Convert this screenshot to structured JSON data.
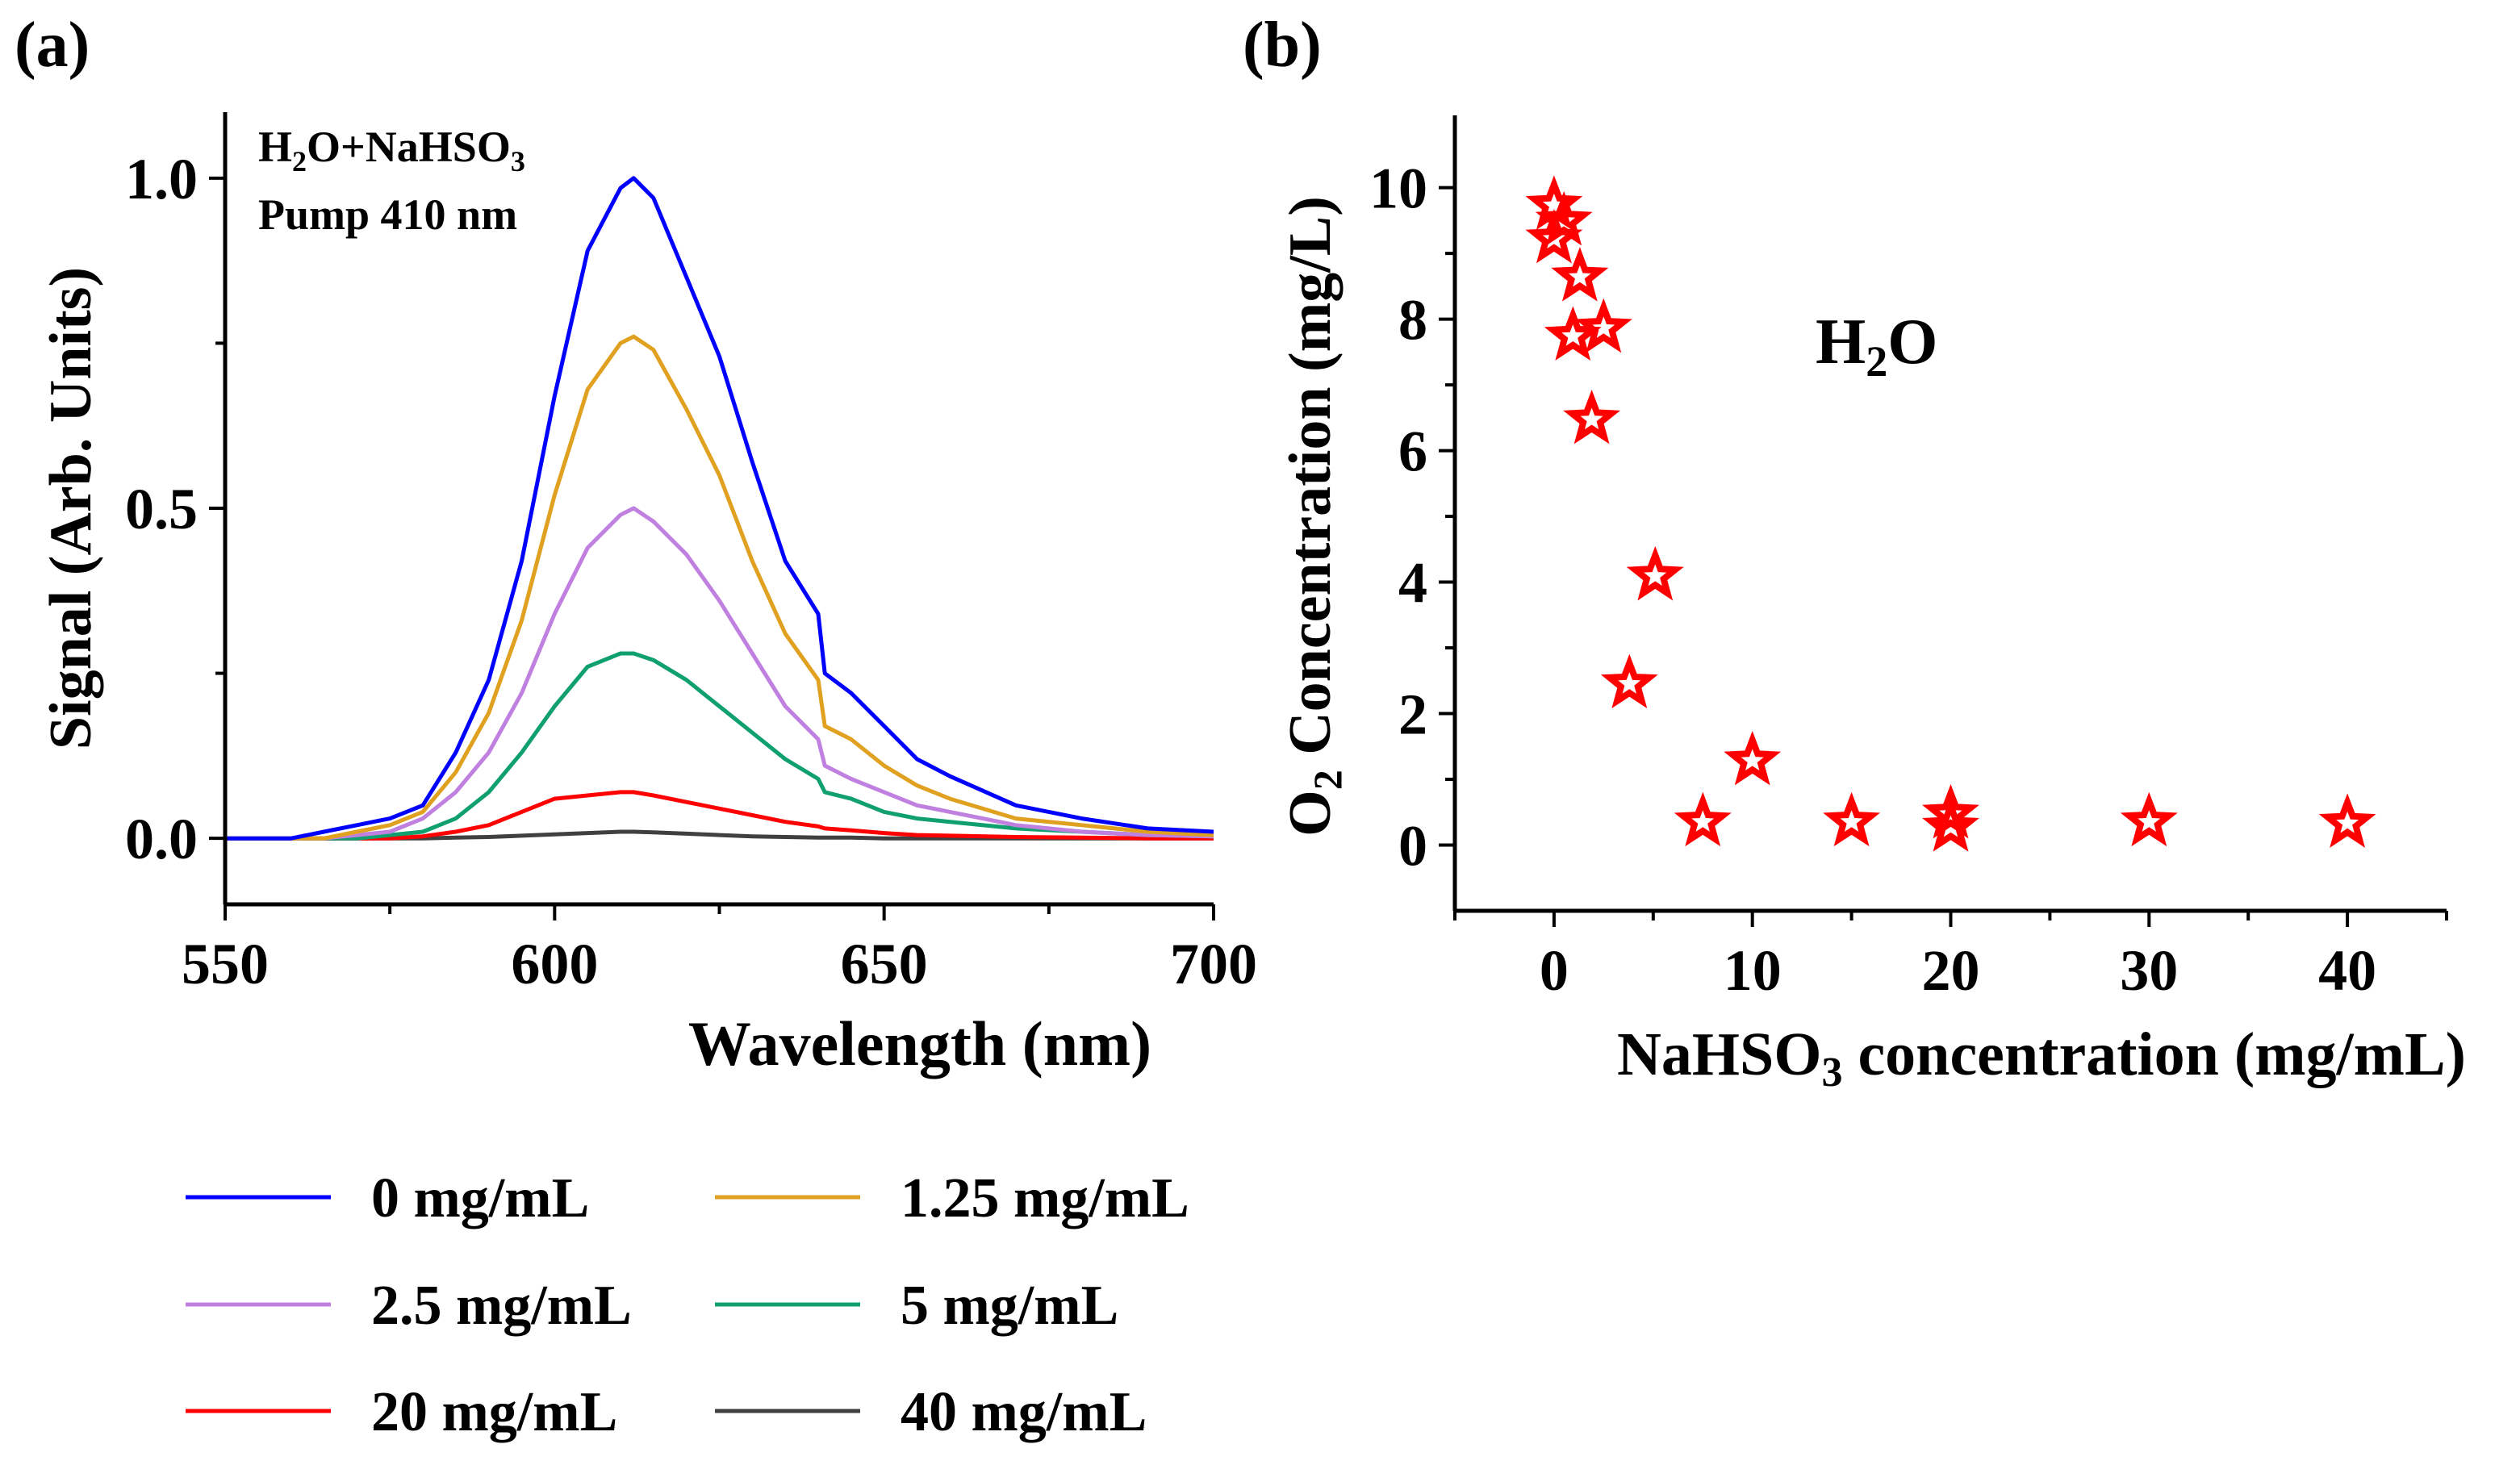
{
  "chart_data": [
    {
      "panel_label": "(a)",
      "type": "line",
      "xlabel": "Wavelength (nm)",
      "ylabel": "Signal (Arb. Units)",
      "xlim": [
        550,
        700
      ],
      "ylim": [
        -0.1,
        1.1
      ],
      "xticks": [
        "550",
        "600",
        "650",
        "700"
      ],
      "yticks": [
        "0.0",
        "0.5",
        "1.0"
      ],
      "annotation": [
        "H2O+NaHSO3",
        "Pump 410 nm"
      ],
      "legend_position": "bottom",
      "x": [
        550,
        560,
        565,
        570,
        575,
        580,
        585,
        590,
        595,
        600,
        605,
        610,
        612,
        615,
        620,
        625,
        630,
        635,
        640,
        641,
        645,
        650,
        655,
        660,
        670,
        680,
        690,
        700
      ],
      "series": [
        {
          "name": "0 mg/mL",
          "color": "#0000FF",
          "values": [
            0,
            0,
            0.01,
            0.02,
            0.03,
            0.05,
            0.13,
            0.24,
            0.42,
            0.67,
            0.89,
            0.985,
            1.0,
            0.97,
            0.85,
            0.73,
            0.57,
            0.42,
            0.34,
            0.25,
            0.22,
            0.17,
            0.12,
            0.094,
            0.05,
            0.03,
            0.015,
            0.01
          ]
        },
        {
          "name": "1.25 mg/mL",
          "color": "#E0A020",
          "values": [
            0,
            0,
            0,
            0.01,
            0.02,
            0.04,
            0.1,
            0.19,
            0.33,
            0.52,
            0.68,
            0.75,
            0.76,
            0.74,
            0.65,
            0.55,
            0.42,
            0.31,
            0.24,
            0.17,
            0.15,
            0.11,
            0.08,
            0.06,
            0.03,
            0.02,
            0.01,
            0.005
          ]
        },
        {
          "name": "2.5 mg/mL",
          "color": "#C080E0",
          "values": [
            0,
            0,
            0,
            0.005,
            0.01,
            0.03,
            0.07,
            0.13,
            0.22,
            0.34,
            0.44,
            0.49,
            0.5,
            0.48,
            0.43,
            0.36,
            0.28,
            0.2,
            0.15,
            0.11,
            0.09,
            0.07,
            0.05,
            0.04,
            0.02,
            0.01,
            0.005,
            0.003
          ]
        },
        {
          "name": "5 mg/mL",
          "color": "#10A070",
          "values": [
            0,
            0,
            0,
            0,
            0.005,
            0.01,
            0.03,
            0.07,
            0.13,
            0.2,
            0.26,
            0.28,
            0.28,
            0.27,
            0.24,
            0.2,
            0.16,
            0.12,
            0.09,
            0.07,
            0.06,
            0.04,
            0.03,
            0.025,
            0.015,
            0.01,
            0.005,
            0.003
          ]
        },
        {
          "name": "20 mg/mL",
          "color": "#FF0000",
          "values": [
            0,
            0,
            0,
            0,
            0,
            0.003,
            0.01,
            0.02,
            0.04,
            0.06,
            0.065,
            0.07,
            0.07,
            0.065,
            0.055,
            0.045,
            0.035,
            0.025,
            0.018,
            0.015,
            0.012,
            0.008,
            0.005,
            0.004,
            0.002,
            0.001,
            0,
            0
          ]
        },
        {
          "name": "40 mg/mL",
          "color": "#404040",
          "values": [
            0,
            0,
            0,
            0,
            0,
            0,
            0.001,
            0.002,
            0.004,
            0.006,
            0.008,
            0.01,
            0.01,
            0.009,
            0.007,
            0.005,
            0.003,
            0.002,
            0.001,
            0.001,
            0.001,
            0,
            0,
            0,
            0,
            0,
            0,
            0
          ]
        }
      ]
    },
    {
      "panel_label": "(b)",
      "type": "scatter",
      "xlabel": "NaHSO3 concentration (mg/mL)",
      "ylabel": "O2 Concentration (mg/L)",
      "xlim": [
        -5,
        45
      ],
      "ylim": [
        -1,
        11.1
      ],
      "xticks": [
        "0",
        "10",
        "20",
        "30",
        "40"
      ],
      "yticks": [
        "0",
        "2",
        "4",
        "6",
        "8",
        "10"
      ],
      "annotation": "H2O",
      "marker": "star",
      "color": "#FF0000",
      "points": [
        {
          "x": 0,
          "y": 9.73
        },
        {
          "x": 0.5,
          "y": 9.49
        },
        {
          "x": 0,
          "y": 9.22
        },
        {
          "x": 1.3,
          "y": 8.64
        },
        {
          "x": 0.95,
          "y": 7.74
        },
        {
          "x": 2.5,
          "y": 7.86
        },
        {
          "x": 1.9,
          "y": 6.47
        },
        {
          "x": 5.1,
          "y": 4.09
        },
        {
          "x": 3.8,
          "y": 2.45
        },
        {
          "x": 10,
          "y": 1.28
        },
        {
          "x": 7.5,
          "y": 0.35
        },
        {
          "x": 15,
          "y": 0.35
        },
        {
          "x": 20,
          "y": 0.47
        },
        {
          "x": 20,
          "y": 0.27
        },
        {
          "x": 30,
          "y": 0.35
        },
        {
          "x": 40,
          "y": 0.33
        }
      ]
    }
  ]
}
